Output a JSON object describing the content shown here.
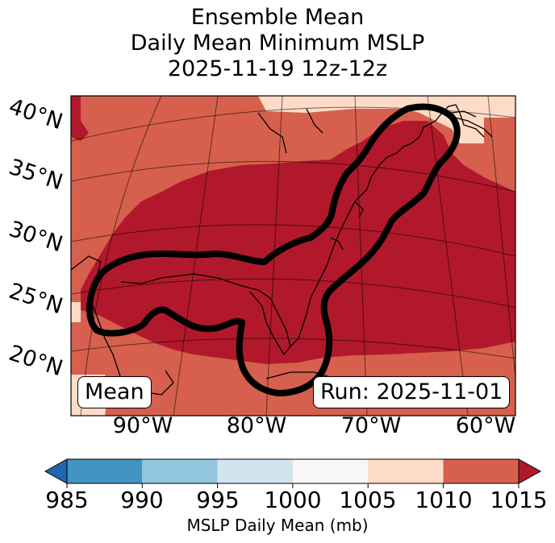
{
  "title": {
    "line1": "Ensemble Mean",
    "line2": "Daily Mean Minimum MSLP",
    "line3": "2025-11-19 12z-12z"
  },
  "map": {
    "lat_labels": [
      "40°N",
      "35°N",
      "30°N",
      "25°N",
      "20°N"
    ],
    "lon_labels": [
      "90°W",
      "80°W",
      "70°W",
      "60°W"
    ],
    "mean_box": "Mean",
    "run_box": "Run: 2025-11-01",
    "colors": {
      "low": "#b2182b",
      "mid": "#d6604d",
      "high": "#fddbc7",
      "contour": "#000000"
    }
  },
  "colorbar": {
    "ticks": [
      "985",
      "990",
      "995",
      "1000",
      "1005",
      "1010",
      "1015"
    ],
    "label": "MSLP Daily Mean (mb)",
    "colors": [
      "#2166ac",
      "#4393c3",
      "#92c5de",
      "#d1e5f0",
      "#f7f7f7",
      "#fddbc7",
      "#d6604d",
      "#b2182b"
    ]
  }
}
